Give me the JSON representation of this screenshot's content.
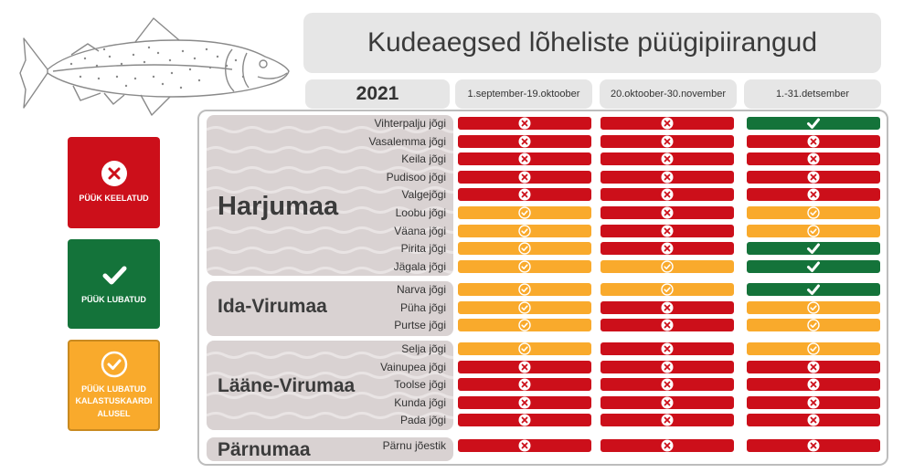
{
  "title": "Kudeaegsed lõheliste püügipiirangud",
  "year": "2021",
  "periods": [
    "1.september-19.oktoober",
    "20.oktoober-30.november",
    "1.-31.detsember"
  ],
  "legend": {
    "forbidden": "PÜÜK KEELATUD",
    "allowed": "PÜÜK LUBATUD",
    "card": "PÜÜK LUBATUD KALASTUSKAARDI ALUSEL"
  },
  "colors": {
    "forbidden": "#cc0f1a",
    "allowed": "#14733a",
    "card": "#f9aa2c"
  },
  "status_icons": {
    "forbidden": "x-icon",
    "allowed": "check-icon",
    "card": "check-circle-icon"
  },
  "counties": [
    {
      "name": "Harjumaa",
      "rivers": [
        {
          "name": "Vihterpalju jõgi",
          "status": [
            "forbidden",
            "forbidden",
            "allowed"
          ]
        },
        {
          "name": "Vasalemma jõgi",
          "status": [
            "forbidden",
            "forbidden",
            "forbidden"
          ]
        },
        {
          "name": "Keila jõgi",
          "status": [
            "forbidden",
            "forbidden",
            "forbidden"
          ]
        },
        {
          "name": "Pudisoo jõgi",
          "status": [
            "forbidden",
            "forbidden",
            "forbidden"
          ]
        },
        {
          "name": "Valgejõgi",
          "status": [
            "forbidden",
            "forbidden",
            "forbidden"
          ]
        },
        {
          "name": "Loobu jõgi",
          "status": [
            "card",
            "forbidden",
            "card"
          ]
        },
        {
          "name": "Väana jõgi",
          "status": [
            "card",
            "forbidden",
            "card"
          ]
        },
        {
          "name": "Pirita jõgi",
          "status": [
            "card",
            "forbidden",
            "allowed"
          ]
        },
        {
          "name": "Jägala jõgi",
          "status": [
            "card",
            "card",
            "allowed"
          ]
        }
      ]
    },
    {
      "name": "Ida-Virumaa",
      "rivers": [
        {
          "name": "Narva jõgi",
          "status": [
            "card",
            "card",
            "allowed"
          ]
        },
        {
          "name": "Püha jõgi",
          "status": [
            "card",
            "forbidden",
            "card"
          ]
        },
        {
          "name": "Purtse jõgi",
          "status": [
            "card",
            "forbidden",
            "card"
          ]
        }
      ]
    },
    {
      "name": "Lääne-Virumaa",
      "rivers": [
        {
          "name": "Selja jõgi",
          "status": [
            "card",
            "forbidden",
            "card"
          ]
        },
        {
          "name": "Vainupea jõgi",
          "status": [
            "forbidden",
            "forbidden",
            "forbidden"
          ]
        },
        {
          "name": "Toolse jõgi",
          "status": [
            "forbidden",
            "forbidden",
            "forbidden"
          ]
        },
        {
          "name": "Kunda jõgi",
          "status": [
            "forbidden",
            "forbidden",
            "forbidden"
          ]
        },
        {
          "name": "Pada jõgi",
          "status": [
            "forbidden",
            "forbidden",
            "forbidden"
          ]
        }
      ]
    },
    {
      "name": "Pärnumaa",
      "rivers": [
        {
          "name": "Pärnu jõestik",
          "status": [
            "forbidden",
            "forbidden",
            "forbidden"
          ]
        }
      ]
    }
  ]
}
